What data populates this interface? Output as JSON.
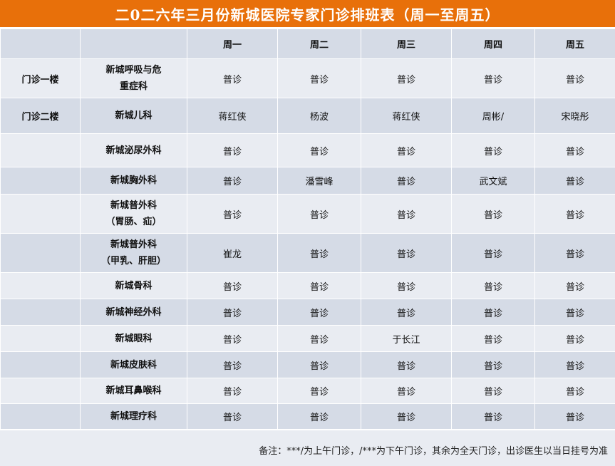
{
  "title": "二0二六年三月份新城医院专家门诊排班表（周一至周五）",
  "days": [
    "周一",
    "周二",
    "周三",
    "周四",
    "周五"
  ],
  "rows": [
    {
      "loc": "门诊一楼",
      "dept1": "新城呼吸与危",
      "dept2": "重症科",
      "cells": [
        "普诊",
        "普诊",
        "普诊",
        "普诊",
        "普诊"
      ]
    },
    {
      "loc": "门诊二楼",
      "dept1": "新城儿科",
      "dept2": "",
      "cells": [
        "蒋红侠",
        "杨波",
        "蒋红侠",
        "周彬/",
        "宋晓彤"
      ]
    },
    {
      "loc": "",
      "dept1": "新城泌尿外科",
      "dept2": "",
      "cells": [
        "普诊",
        "普诊",
        "普诊",
        "普诊",
        "普诊"
      ]
    },
    {
      "loc": "",
      "dept1": "新城胸外科",
      "dept2": "",
      "cells": [
        "普诊",
        "潘雪峰",
        "普诊",
        "武文斌",
        "普诊"
      ]
    },
    {
      "loc": "",
      "dept1": "新城普外科",
      "dept2": "（胃肠、疝）",
      "cells": [
        "普诊",
        "普诊",
        "普诊",
        "普诊",
        "普诊"
      ]
    },
    {
      "loc": "",
      "dept1": "新城普外科",
      "dept2": "（甲乳、肝胆）",
      "cells": [
        "崔龙",
        "普诊",
        "普诊",
        "普诊",
        "普诊"
      ]
    },
    {
      "loc": "",
      "dept1": "新城骨科",
      "dept2": "",
      "cells": [
        "普诊",
        "普诊",
        "普诊",
        "普诊",
        "普诊"
      ]
    },
    {
      "loc": "",
      "dept1": "新城神经外科",
      "dept2": "",
      "cells": [
        "普诊",
        "普诊",
        "普诊",
        "普诊",
        "普诊"
      ]
    },
    {
      "loc": "",
      "dept1": "新城眼科",
      "dept2": "",
      "cells": [
        "普诊",
        "普诊",
        "于长江",
        "普诊",
        "普诊"
      ]
    },
    {
      "loc": "",
      "dept1": "新城皮肤科",
      "dept2": "",
      "cells": [
        "普诊",
        "普诊",
        "普诊",
        "普诊",
        "普诊"
      ]
    },
    {
      "loc": "",
      "dept1": "新城耳鼻喉科",
      "dept2": "",
      "cells": [
        "普诊",
        "普诊",
        "普诊",
        "普诊",
        "普诊"
      ]
    },
    {
      "loc": "",
      "dept1": "新城理疗科",
      "dept2": "",
      "cells": [
        "普诊",
        "普诊",
        "普诊",
        "普诊",
        "普诊"
      ]
    }
  ],
  "note": "备注：***/为上午门诊，/***为下午门诊，其余为全天门诊，出诊医生以当日挂号为准",
  "colors": {
    "accent": "#e8700a",
    "row_dark": "#d5dbe6",
    "row_light": "#e9ecf2"
  }
}
